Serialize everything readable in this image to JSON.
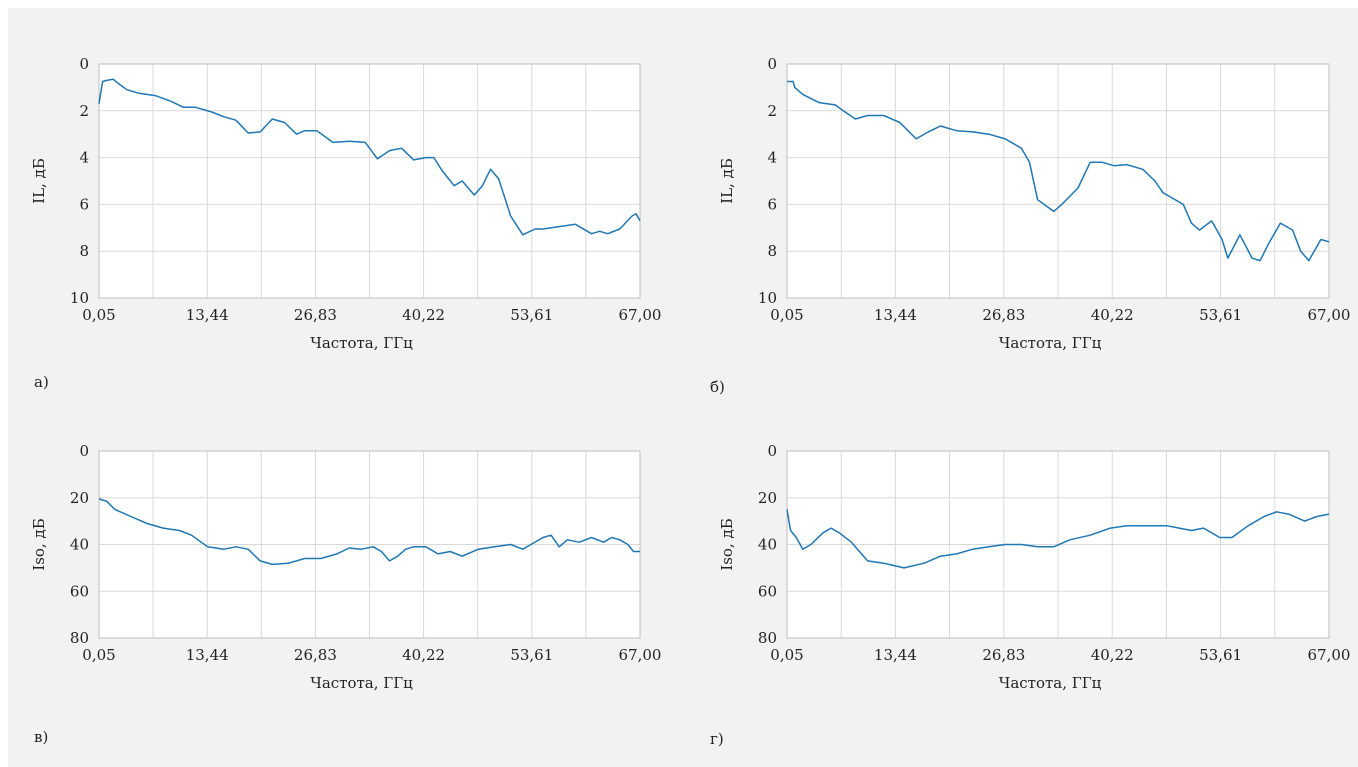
{
  "colors": {
    "line": "#1f77b4",
    "grid": "#d9d9d9",
    "background": "#f2f2f2",
    "plot": "#ffffff"
  },
  "chart_data": [
    {
      "type": "line",
      "caption": "а)",
      "xlabel": "Частота, ГГц",
      "ylabel": "IL, дБ",
      "x_ticks": [
        "0,05",
        "13,44",
        "26,83",
        "40,22",
        "53,61",
        "67,00"
      ],
      "y_ticks": [
        "0",
        "2",
        "4",
        "6",
        "8",
        "10"
      ],
      "xlim": [
        0.05,
        67.0
      ],
      "ylim": [
        0,
        10
      ],
      "y_inverted": true,
      "grid": true,
      "series": [
        {
          "x": [
            0.05,
            0.5,
            1.0,
            1.8,
            2.5,
            3.5,
            5.0,
            7.0,
            9.0,
            10.5,
            12.0,
            14.0,
            15.5,
            17.0,
            18.5,
            20.0,
            21.5,
            23.0,
            24.5,
            25.5,
            27.0,
            29.0,
            31.0,
            33.0,
            34.5,
            36.0,
            37.5,
            39.0,
            40.5,
            41.5,
            42.5,
            44.0,
            45.0,
            46.5,
            47.5,
            48.5,
            49.5,
            51.0,
            52.5,
            54.0,
            55.0,
            57.0,
            59.0,
            61.0,
            62.0,
            63.0,
            64.5,
            66.0,
            66.5,
            67.0
          ],
          "y": [
            1.7,
            0.75,
            0.7,
            0.65,
            0.85,
            1.1,
            1.25,
            1.35,
            1.6,
            1.85,
            1.85,
            2.05,
            2.25,
            2.4,
            2.95,
            2.9,
            2.35,
            2.5,
            3.0,
            2.85,
            2.85,
            3.35,
            3.3,
            3.35,
            4.05,
            3.7,
            3.6,
            4.1,
            4.0,
            4.0,
            4.55,
            5.2,
            5.0,
            5.6,
            5.2,
            4.5,
            4.9,
            6.5,
            7.3,
            7.05,
            7.05,
            6.95,
            6.85,
            7.25,
            7.15,
            7.25,
            7.05,
            6.5,
            6.4,
            6.7
          ]
        }
      ]
    },
    {
      "type": "line",
      "caption": "б)",
      "xlabel": "Частота, ГГц",
      "ylabel": "IL, дБ",
      "x_ticks": [
        "0,05",
        "13,44",
        "26,83",
        "40,22",
        "53,61",
        "67,00"
      ],
      "y_ticks": [
        "0",
        "2",
        "4",
        "6",
        "8",
        "10"
      ],
      "xlim": [
        0.05,
        67.0
      ],
      "ylim": [
        0,
        10
      ],
      "y_inverted": true,
      "grid": true,
      "series": [
        {
          "x": [
            0.05,
            0.8,
            1.0,
            2.0,
            4.0,
            6.0,
            7.0,
            8.5,
            10.0,
            12.0,
            14.0,
            16.0,
            17.5,
            19.0,
            21.0,
            23.0,
            25.0,
            27.0,
            29.0,
            30.0,
            31.0,
            33.0,
            34.0,
            36.0,
            37.5,
            39.0,
            40.5,
            42.0,
            44.0,
            45.5,
            46.5,
            47.5,
            49.0,
            50.0,
            51.0,
            52.5,
            53.8,
            54.5,
            56.0,
            57.5,
            58.5,
            59.5,
            61.0,
            62.5,
            63.5,
            64.5,
            66.0,
            67.0
          ],
          "y": [
            0.75,
            0.75,
            1.0,
            1.3,
            1.65,
            1.75,
            2.0,
            2.35,
            2.2,
            2.2,
            2.5,
            3.2,
            2.9,
            2.65,
            2.85,
            2.9,
            3.0,
            3.2,
            3.6,
            4.2,
            5.8,
            6.3,
            6.0,
            5.3,
            4.2,
            4.2,
            4.35,
            4.3,
            4.5,
            5.0,
            5.5,
            5.7,
            6.0,
            6.8,
            7.1,
            6.7,
            7.5,
            8.3,
            7.3,
            8.3,
            8.4,
            7.7,
            6.8,
            7.1,
            8.0,
            8.4,
            7.5,
            7.6
          ]
        }
      ]
    },
    {
      "type": "line",
      "caption": "в)",
      "xlabel": "Частота, ГГц",
      "ylabel": "Iso, дБ",
      "x_ticks": [
        "0,05",
        "13,44",
        "26,83",
        "40,22",
        "53,61",
        "67,00"
      ],
      "y_ticks": [
        "0",
        "20",
        "40",
        "60",
        "80"
      ],
      "xlim": [
        0.05,
        67.0
      ],
      "ylim": [
        0,
        80
      ],
      "y_inverted": true,
      "grid": true,
      "series": [
        {
          "x": [
            0.05,
            1.0,
            2.0,
            4.0,
            6.0,
            8.0,
            10.0,
            11.5,
            13.5,
            15.5,
            17.0,
            18.5,
            20.0,
            21.5,
            23.5,
            25.5,
            27.5,
            29.5,
            31.0,
            32.5,
            34.0,
            35.0,
            36.0,
            37.0,
            38.0,
            39.0,
            40.5,
            42.0,
            43.5,
            45.0,
            47.0,
            49.0,
            51.0,
            52.5,
            53.5,
            55.0,
            56.0,
            57.0,
            58.0,
            59.5,
            61.0,
            62.5,
            63.5,
            64.5,
            65.5,
            66.2,
            67.0
          ],
          "y": [
            20.5,
            21.5,
            25,
            28,
            31,
            33,
            34,
            36,
            41,
            42,
            41,
            42,
            47,
            48.5,
            48,
            46,
            46,
            44,
            41.5,
            42,
            41,
            43,
            47,
            45,
            42,
            41,
            41,
            44,
            43,
            45,
            42,
            41,
            40,
            42,
            40,
            37,
            36,
            41,
            38,
            39,
            37,
            39,
            37,
            38,
            40,
            43,
            43
          ]
        }
      ]
    },
    {
      "type": "line",
      "caption": "г)",
      "xlabel": "Частота, ГГц",
      "ylabel": "Iso, дБ",
      "x_ticks": [
        "0,05",
        "13,44",
        "26,83",
        "40,22",
        "53,61",
        "67,00"
      ],
      "y_ticks": [
        "0",
        "20",
        "40",
        "60",
        "80"
      ],
      "xlim": [
        0.05,
        67.0
      ],
      "ylim": [
        0,
        80
      ],
      "y_inverted": true,
      "grid": true,
      "series": [
        {
          "x": [
            0.05,
            0.5,
            1.2,
            2.0,
            3.0,
            4.5,
            5.5,
            6.5,
            8.0,
            10.0,
            12.0,
            14.5,
            17.0,
            19.0,
            21.0,
            23.0,
            25.0,
            27.0,
            29.0,
            31.0,
            33.0,
            35.0,
            37.5,
            40.0,
            42.0,
            44.0,
            45.5,
            47.0,
            48.5,
            50.0,
            51.5,
            53.5,
            55.0,
            57.0,
            59.0,
            60.5,
            62.0,
            64.0,
            65.5,
            67.0
          ],
          "y": [
            25,
            34,
            37,
            42,
            40,
            35,
            33,
            35,
            39,
            47,
            48,
            50,
            48,
            45,
            44,
            42,
            41,
            40,
            40,
            41,
            41,
            38,
            36,
            33,
            32,
            32,
            32,
            32,
            33,
            34,
            33,
            37,
            37,
            32,
            28,
            26,
            27,
            30,
            28,
            27
          ]
        }
      ]
    }
  ]
}
